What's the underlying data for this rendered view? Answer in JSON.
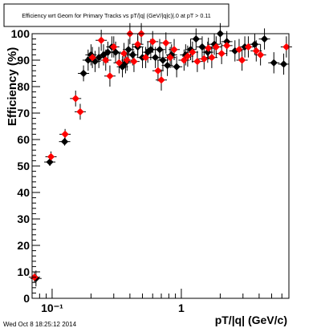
{
  "chart_data": {
    "type": "scatter",
    "title": "Efficiency wrt Geom for Primary Tracks vs pT/|q| (GeV/|q|c)|.0 at pT > 0.11",
    "xlabel": "pT/|q| (GeV/c)",
    "ylabel": "Efficiency (%)",
    "x_scale": "log",
    "xlim": [
      0.07,
      6.8
    ],
    "ylim": [
      0,
      100
    ],
    "y_ticks": [
      0,
      10,
      20,
      30,
      40,
      50,
      60,
      70,
      80,
      90,
      100
    ],
    "x_tick_labels": [
      {
        "value": 0.1,
        "label": "10⁻¹"
      },
      {
        "value": 1,
        "label": "1"
      }
    ],
    "grid": false,
    "legend": "none",
    "series": [
      {
        "color": "#000000",
        "marker": "diamond",
        "points": [
          {
            "x": 0.075,
            "y": 7.5,
            "ey": 3
          },
          {
            "x": 0.096,
            "y": 51.5,
            "ey": 1.5
          },
          {
            "x": 0.125,
            "y": 59.2,
            "ey": 1.5
          },
          {
            "x": 0.175,
            "y": 85,
            "ey": 3
          },
          {
            "x": 0.19,
            "y": 90,
            "ey": 4
          },
          {
            "x": 0.2,
            "y": 92,
            "ey": 4
          },
          {
            "x": 0.215,
            "y": 89.5,
            "ey": 4
          },
          {
            "x": 0.23,
            "y": 91,
            "ey": 4
          },
          {
            "x": 0.25,
            "y": 92,
            "ey": 4
          },
          {
            "x": 0.27,
            "y": 93,
            "ey": 4
          },
          {
            "x": 0.29,
            "y": 95,
            "ey": 4
          },
          {
            "x": 0.31,
            "y": 93,
            "ey": 4
          },
          {
            "x": 0.35,
            "y": 87.5,
            "ey": 4
          },
          {
            "x": 0.37,
            "y": 89,
            "ey": 4
          },
          {
            "x": 0.39,
            "y": 94,
            "ey": 4
          },
          {
            "x": 0.42,
            "y": 92,
            "ey": 4
          },
          {
            "x": 0.46,
            "y": 95,
            "ey": 4
          },
          {
            "x": 0.5,
            "y": 91,
            "ey": 4
          },
          {
            "x": 0.55,
            "y": 93,
            "ey": 4
          },
          {
            "x": 0.58,
            "y": 94,
            "ey": 4
          },
          {
            "x": 0.63,
            "y": 91,
            "ey": 4
          },
          {
            "x": 0.68,
            "y": 94,
            "ey": 4
          },
          {
            "x": 0.72,
            "y": 90,
            "ey": 4
          },
          {
            "x": 0.78,
            "y": 88,
            "ey": 4
          },
          {
            "x": 0.84,
            "y": 92,
            "ey": 4
          },
          {
            "x": 0.92,
            "y": 87.5,
            "ey": 4
          },
          {
            "x": 1.08,
            "y": 92,
            "ey": 4
          },
          {
            "x": 1.18,
            "y": 94,
            "ey": 4
          },
          {
            "x": 1.3,
            "y": 98,
            "ey": 4
          },
          {
            "x": 1.45,
            "y": 95,
            "ey": 4
          },
          {
            "x": 1.6,
            "y": 93,
            "ey": 4
          },
          {
            "x": 1.8,
            "y": 96,
            "ey": 4
          },
          {
            "x": 2.0,
            "y": 100,
            "ey": 4
          },
          {
            "x": 2.25,
            "y": 97,
            "ey": 4
          },
          {
            "x": 2.6,
            "y": 93.5,
            "ey": 4
          },
          {
            "x": 3.1,
            "y": 95,
            "ey": 4
          },
          {
            "x": 3.7,
            "y": 96,
            "ey": 4
          },
          {
            "x": 4.4,
            "y": 98,
            "ey": 4
          },
          {
            "x": 5.2,
            "y": 89,
            "ey": 4
          },
          {
            "x": 6.2,
            "y": 88.5,
            "ey": 4
          }
        ]
      },
      {
        "color": "#ff0000",
        "marker": "diamond",
        "points": [
          {
            "x": 0.073,
            "y": 8,
            "ey": 2
          },
          {
            "x": 0.098,
            "y": 53.5,
            "ey": 2
          },
          {
            "x": 0.126,
            "y": 62,
            "ey": 2
          },
          {
            "x": 0.152,
            "y": 75.5,
            "ey": 3
          },
          {
            "x": 0.165,
            "y": 70.5,
            "ey": 3
          },
          {
            "x": 0.205,
            "y": 91,
            "ey": 4
          },
          {
            "x": 0.24,
            "y": 97.5,
            "ey": 4
          },
          {
            "x": 0.26,
            "y": 90,
            "ey": 4
          },
          {
            "x": 0.28,
            "y": 84,
            "ey": 4
          },
          {
            "x": 0.3,
            "y": 95,
            "ey": 4
          },
          {
            "x": 0.33,
            "y": 89,
            "ey": 4
          },
          {
            "x": 0.36,
            "y": 92.5,
            "ey": 4
          },
          {
            "x": 0.38,
            "y": 90,
            "ey": 4
          },
          {
            "x": 0.4,
            "y": 100,
            "ey": 4
          },
          {
            "x": 0.43,
            "y": 89.5,
            "ey": 4
          },
          {
            "x": 0.46,
            "y": 96,
            "ey": 4
          },
          {
            "x": 0.49,
            "y": 100,
            "ey": 4
          },
          {
            "x": 0.53,
            "y": 91,
            "ey": 4
          },
          {
            "x": 0.6,
            "y": 97,
            "ey": 4
          },
          {
            "x": 0.66,
            "y": 86,
            "ey": 4
          },
          {
            "x": 0.7,
            "y": 82.5,
            "ey": 4
          },
          {
            "x": 0.76,
            "y": 96.5,
            "ey": 4
          },
          {
            "x": 0.82,
            "y": 91,
            "ey": 4
          },
          {
            "x": 0.88,
            "y": 94,
            "ey": 4
          },
          {
            "x": 1.05,
            "y": 90,
            "ey": 4
          },
          {
            "x": 1.12,
            "y": 91.5,
            "ey": 4
          },
          {
            "x": 1.22,
            "y": 93,
            "ey": 4
          },
          {
            "x": 1.33,
            "y": 89.5,
            "ey": 4
          },
          {
            "x": 1.5,
            "y": 90.5,
            "ey": 4
          },
          {
            "x": 1.62,
            "y": 94.5,
            "ey": 4
          },
          {
            "x": 1.72,
            "y": 91,
            "ey": 4
          },
          {
            "x": 1.86,
            "y": 95,
            "ey": 4
          },
          {
            "x": 2.05,
            "y": 92.5,
            "ey": 4
          },
          {
            "x": 2.25,
            "y": 95.5,
            "ey": 4
          },
          {
            "x": 2.8,
            "y": 94,
            "ey": 4
          },
          {
            "x": 2.95,
            "y": 90,
            "ey": 4
          },
          {
            "x": 3.3,
            "y": 95,
            "ey": 4
          },
          {
            "x": 3.8,
            "y": 93.5,
            "ey": 4
          },
          {
            "x": 4.1,
            "y": 92,
            "ey": 4
          },
          {
            "x": 6.5,
            "y": 95,
            "ey": 4
          }
        ]
      }
    ]
  },
  "footer": {
    "timestamp": "Wed Oct  8 18:25:12 2014"
  }
}
